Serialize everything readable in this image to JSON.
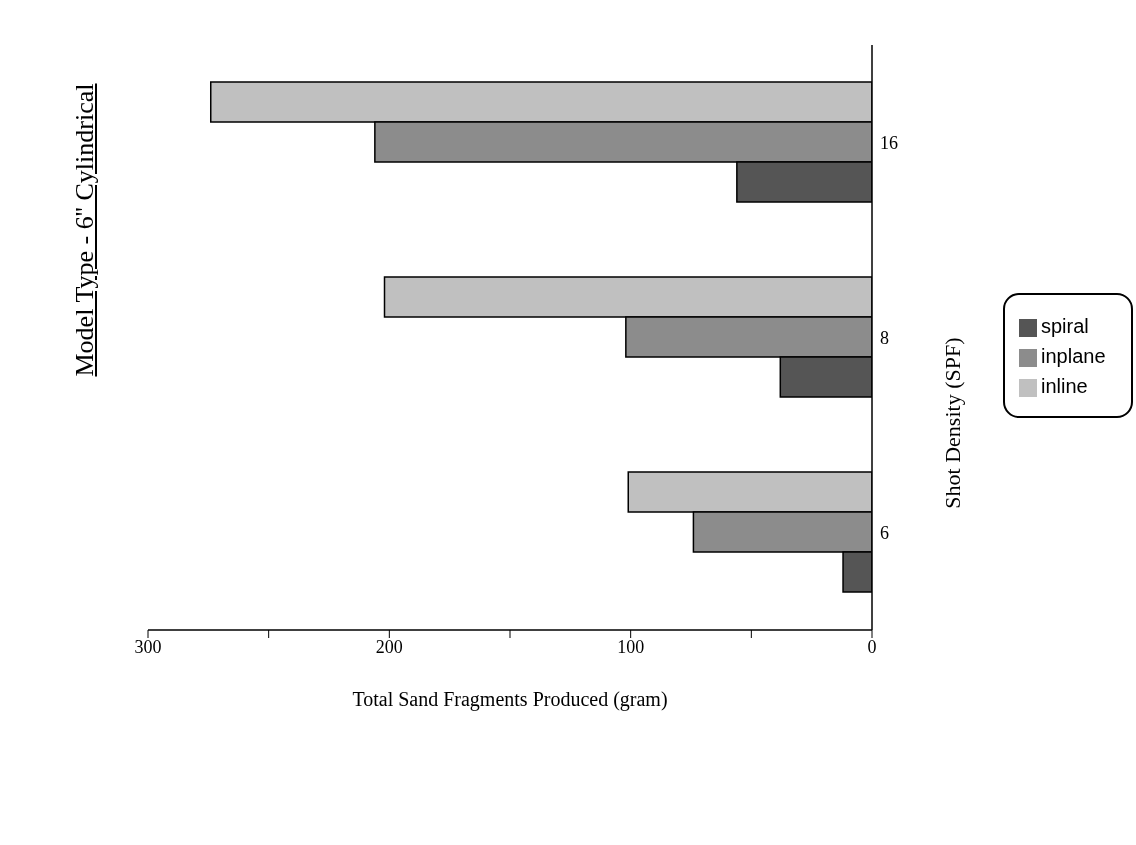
{
  "chart_data": {
    "type": "bar",
    "orientation": "horizontal",
    "title": "Model Type  -  6'' Cylindrical",
    "xlabel": "Total Sand Fragments Produced (gram)",
    "ylabel": "Shot Density (SPF)",
    "categories": [
      "16",
      "8",
      "6"
    ],
    "series": [
      {
        "name": "spiral",
        "color": "#555555",
        "values": [
          56,
          38,
          12
        ]
      },
      {
        "name": "inplane",
        "color": "#8c8c8c",
        "values": [
          206,
          102,
          74
        ]
      },
      {
        "name": "inline",
        "color": "#c0c0c0",
        "values": [
          274,
          202,
          101
        ]
      }
    ],
    "xlim": [
      300,
      0
    ],
    "xticks": [
      300,
      {
        "value": 250,
        "label": null
      },
      200,
      {
        "value": 150,
        "label": null
      },
      100,
      {
        "value": 50,
        "label": null
      },
      0
    ],
    "legend": "right"
  }
}
